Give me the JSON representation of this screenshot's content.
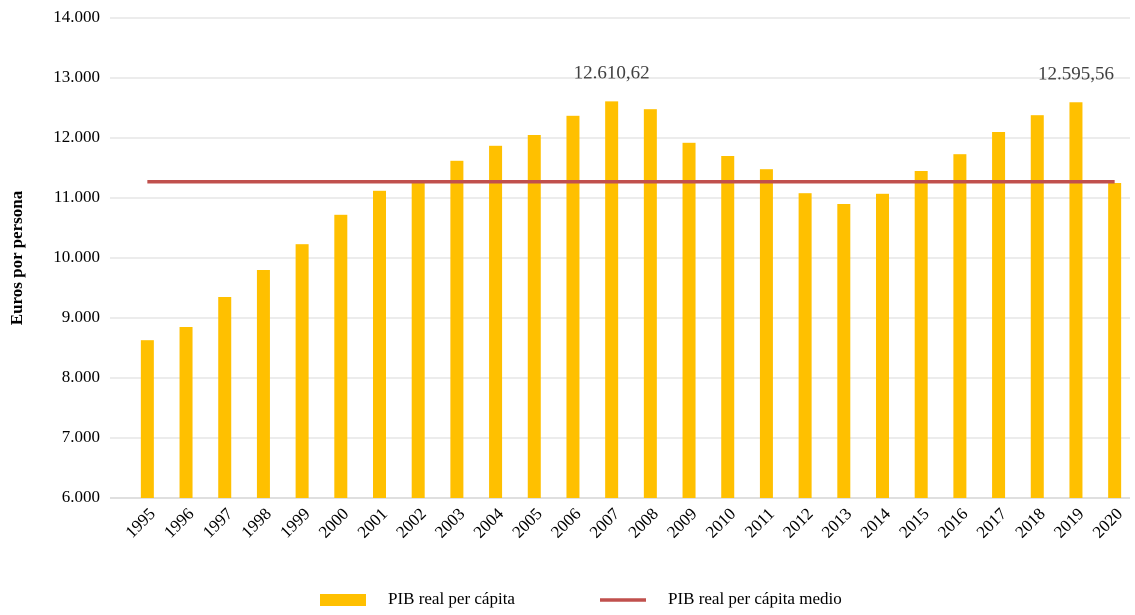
{
  "chart_data": {
    "type": "bar",
    "y_label": "Euros por persona",
    "categories": [
      "1995",
      "1996",
      "1997",
      "1998",
      "1999",
      "2000",
      "2001",
      "2002",
      "2003",
      "2004",
      "2005",
      "2006",
      "2007",
      "2008",
      "2009",
      "2010",
      "2011",
      "2012",
      "2013",
      "2014",
      "2015",
      "2016",
      "2017",
      "2018",
      "2019",
      "2020"
    ],
    "series": [
      {
        "name": "PIB real per cápita",
        "type": "bar",
        "color": "#ffc000",
        "values": [
          8630,
          8850,
          9350,
          9800,
          10230,
          10720,
          11120,
          11300,
          11620,
          11870,
          12050,
          12370,
          12610.62,
          12480,
          11920,
          11700,
          11480,
          11080,
          10900,
          11070,
          11450,
          11730,
          12100,
          12380,
          12595.56,
          11250
        ],
        "value_labels": [
          null,
          null,
          null,
          null,
          null,
          null,
          null,
          null,
          null,
          null,
          null,
          null,
          "12.610,62",
          null,
          null,
          null,
          null,
          null,
          null,
          null,
          null,
          null,
          null,
          null,
          "12.595,56",
          null
        ]
      },
      {
        "name": "PIB real per cápita medio",
        "type": "line",
        "color": "#c0504d",
        "values": [
          11270,
          11270,
          11270,
          11270,
          11270,
          11270,
          11270,
          11270,
          11270,
          11270,
          11270,
          11270,
          11270,
          11270,
          11270,
          11270,
          11270,
          11270,
          11270,
          11270,
          11270,
          11270,
          11270,
          11270,
          11270,
          11270
        ]
      }
    ],
    "ylim": [
      6000,
      14000
    ],
    "yticks": [
      {
        "value": 6000,
        "label": "6.000"
      },
      {
        "value": 7000,
        "label": "7.000"
      },
      {
        "value": 8000,
        "label": "8.000"
      },
      {
        "value": 9000,
        "label": "9.000"
      },
      {
        "value": 10000,
        "label": "10.000"
      },
      {
        "value": 11000,
        "label": "11.000"
      },
      {
        "value": 12000,
        "label": "12.000"
      },
      {
        "value": 13000,
        "label": "13.000"
      },
      {
        "value": 14000,
        "label": "14.000"
      }
    ],
    "grid": true,
    "legend": "bottom"
  }
}
